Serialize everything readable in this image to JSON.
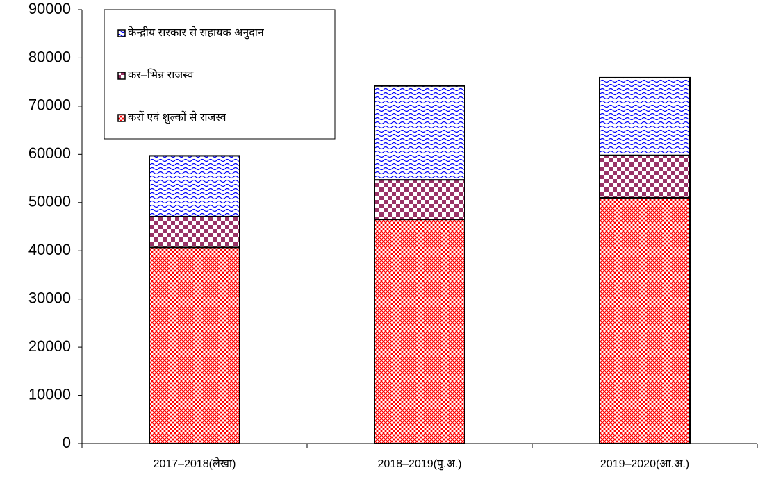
{
  "chart_data": {
    "type": "stacked_bar",
    "categories": [
      "2017–2018(लेखा)",
      "2018–2019(पु.अ.)",
      "2019–2020(आ.अ.)"
    ],
    "series": [
      {
        "name": "करों एवं शुल्कों से राजस्व",
        "color": "#ff0000",
        "pattern": "crosshatch",
        "values": [
          40700,
          46500,
          51000
        ]
      },
      {
        "name": "कर–भिन्न राजस्व",
        "color": "#993366",
        "pattern": "checker",
        "values": [
          6400,
          8200,
          8800
        ]
      },
      {
        "name": "केन्द्रीय सरकार से सहायक अनुदान",
        "color": "#0000ff",
        "pattern": "wave",
        "values": [
          12600,
          19500,
          16100
        ]
      }
    ],
    "ylim": [
      0,
      90000
    ],
    "yticks": [
      0,
      10000,
      20000,
      30000,
      40000,
      50000,
      60000,
      70000,
      80000,
      90000
    ],
    "legend": "upper left",
    "grid": false
  }
}
